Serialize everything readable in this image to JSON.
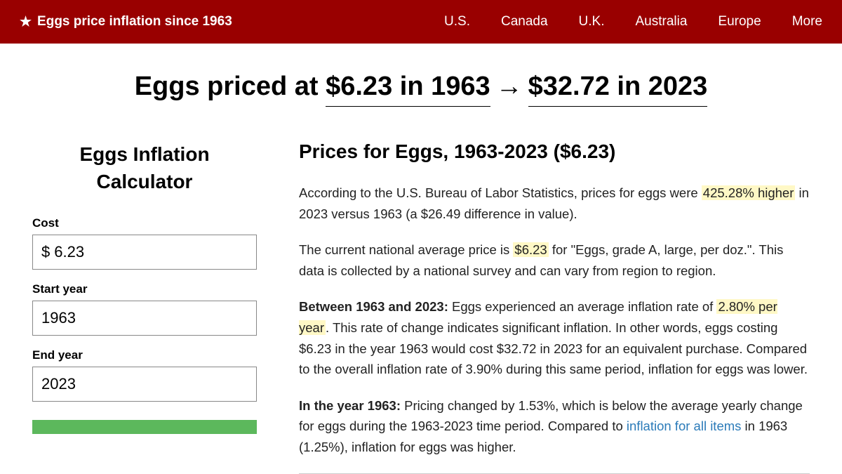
{
  "header": {
    "star": "★",
    "title": "Eggs price inflation since 1963",
    "nav": [
      "U.S.",
      "Canada",
      "U.K.",
      "Australia",
      "Europe",
      "More"
    ]
  },
  "pageTitle": {
    "prefix": "Eggs priced at ",
    "left": "$6.23 in 1963",
    "arrow": "→",
    "right": "$32.72 in 2023"
  },
  "sidebar": {
    "title": "Eggs Inflation Calculator",
    "costLabel": "Cost",
    "costPrefix": "$",
    "costValue": "6.23",
    "startLabel": "Start year",
    "startValue": "1963",
    "endLabel": "End year",
    "endValue": "2023"
  },
  "main": {
    "title": "Prices for Eggs, 1963-2023 ($6.23)",
    "p1a": "According to the U.S. Bureau of Labor Statistics, prices for eggs were ",
    "p1hl": "425.28% higher",
    "p1b": " in 2023 versus 1963 (a $26.49 difference in value).",
    "p2a": "The current national average price is ",
    "p2hl": "$6.23",
    "p2b": " for \"Eggs, grade A, large, per doz.\". This data is collected by a national survey and can vary from region to region.",
    "p3bold": "Between 1963 and 2023:",
    "p3a": " Eggs experienced an average inflation rate of ",
    "p3hl": "2.80% per year",
    "p3b": ". This rate of change indicates significant inflation. In other words, eggs costing $6.23 in the year 1963 would cost $32.72 in 2023 for an equivalent purchase. Compared to the overall inflation rate of 3.90% during this same period, inflation for eggs was lower.",
    "p4bold": "In the year 1963:",
    "p4a": " Pricing changed by 1.53%, which is below the average yearly change for eggs during the 1963-2023 time period. Compared to ",
    "p4link": "inflation for all items",
    "p4b": " in 1963 (1.25%), inflation for eggs was higher."
  }
}
